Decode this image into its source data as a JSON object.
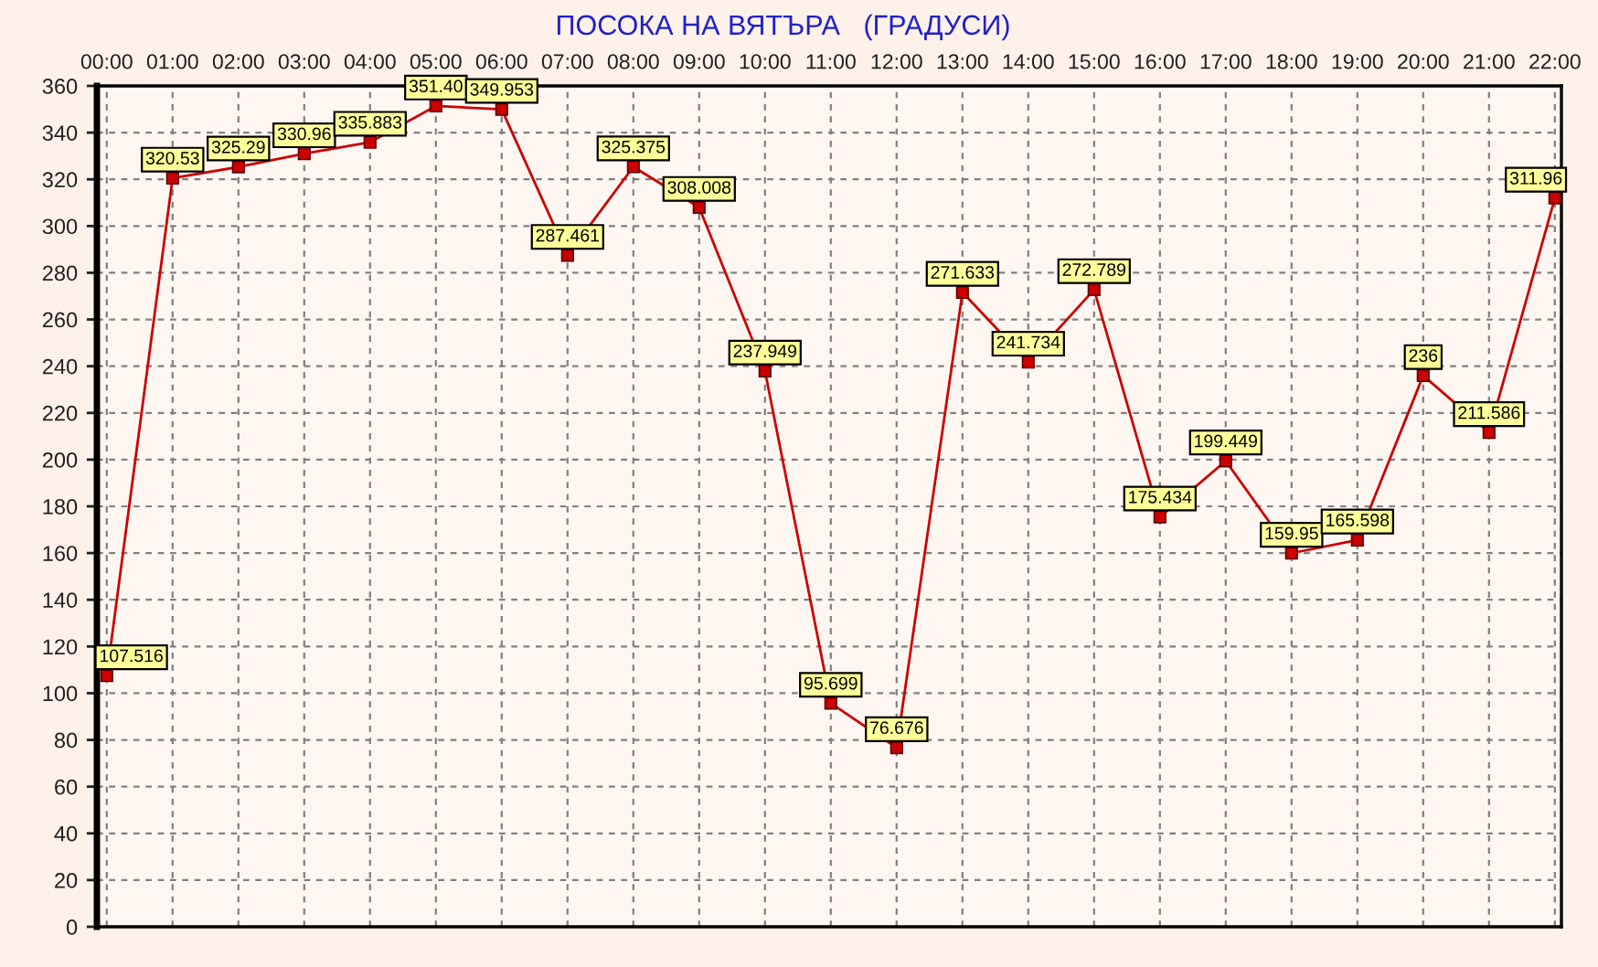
{
  "chart_data": {
    "type": "line",
    "title": "ПОСОКА НА ВЯТЪРА   (ГРАДУСИ)",
    "categories": [
      "00:00",
      "01:00",
      "02:00",
      "03:00",
      "04:00",
      "05:00",
      "06:00",
      "07:00",
      "08:00",
      "09:00",
      "10:00",
      "11:00",
      "12:00",
      "13:00",
      "14:00",
      "15:00",
      "16:00",
      "17:00",
      "18:00",
      "19:00",
      "20:00",
      "21:00",
      "22:00"
    ],
    "values": [
      107.516,
      320.53,
      325.29,
      330.96,
      335.883,
      351.4,
      349.953,
      287.461,
      325.375,
      308.008,
      237.949,
      95.699,
      76.676,
      271.633,
      241.734,
      272.789,
      175.434,
      199.449,
      159.95,
      165.598,
      236,
      211.586,
      311.96
    ],
    "value_labels": [
      "107.516",
      "320.53",
      "325.29",
      "330.96",
      "335.883",
      "351.40",
      "349.953",
      "287.461",
      "325.375",
      "308.008",
      "237.949",
      "95.699",
      "76.676",
      "271.633",
      "241.734",
      "272.789",
      "175.434",
      "199.449",
      "159.95",
      "165.598",
      "236",
      "211.586",
      "311.96"
    ],
    "color": "#cc0000",
    "ylim": [
      0,
      360
    ],
    "yticks": [
      0,
      20,
      40,
      60,
      80,
      100,
      120,
      140,
      160,
      180,
      200,
      220,
      240,
      260,
      280,
      300,
      320,
      340,
      360
    ],
    "grid": true,
    "marker": "square",
    "line_style": "solid"
  }
}
